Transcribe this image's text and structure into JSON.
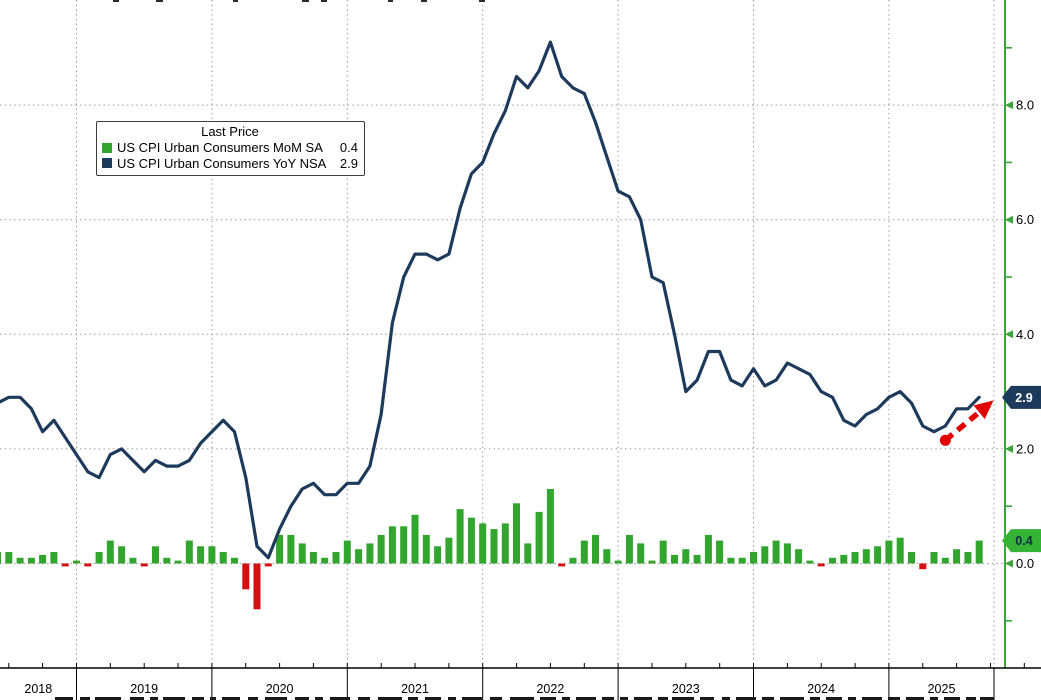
{
  "legend": {
    "title": "Last Price",
    "series": [
      {
        "label": "US CPI Urban Consumers MoM SA",
        "value": "0.4",
        "color": "#31a52e"
      },
      {
        "label": "US CPI Urban Consumers YoY NSA",
        "value": "2.9",
        "color": "#1d3a5c"
      }
    ]
  },
  "colors": {
    "line_navy": "#1d3a5c",
    "bar_green": "#31a52e",
    "bar_red": "#d40f0f",
    "axis_green": "#3aa33a",
    "grid_gray": "#9a9a9a",
    "arrow_red": "#e00000",
    "axis_text": "#000000",
    "x_axis_black": "#000000"
  },
  "chart_data": {
    "type": "combo",
    "x_unit": "month",
    "grid": true,
    "legend_position": "top-left",
    "y_axis": {
      "side": "right",
      "ticks": [
        0,
        2,
        4,
        6,
        8
      ],
      "tick_labels": [
        "0.0",
        "2.0",
        "4.0",
        "6.0",
        "8.0"
      ],
      "minor_ticks": [
        -1,
        1,
        3,
        5,
        7,
        9
      ],
      "displayed_value_range": [
        -1.8,
        9.8
      ]
    },
    "x_axis": {
      "year_labels": [
        "2018",
        "2019",
        "2020",
        "2021",
        "2022",
        "2023",
        "2024",
        "2025"
      ],
      "range": [
        "2018-05",
        "2025-08"
      ]
    },
    "series": [
      {
        "name": "US CPI Urban Consumers MoM SA",
        "type": "bar",
        "start": "2018-05",
        "last_price": 0.4,
        "values": [
          0.2,
          0.2,
          0.1,
          0.1,
          0.15,
          0.2,
          -0.05,
          0.05,
          -0.05,
          0.2,
          0.4,
          0.3,
          0.1,
          -0.05,
          0.3,
          0.1,
          0.05,
          0.4,
          0.3,
          0.3,
          0.2,
          0.1,
          -0.45,
          -0.8,
          -0.05,
          0.5,
          0.5,
          0.35,
          0.2,
          0.1,
          0.2,
          0.4,
          0.25,
          0.35,
          0.5,
          0.65,
          0.65,
          0.85,
          0.5,
          0.3,
          0.45,
          0.95,
          0.8,
          0.7,
          0.6,
          0.7,
          1.05,
          0.35,
          0.9,
          1.3,
          -0.05,
          0.1,
          0.4,
          0.5,
          0.25,
          0.05,
          0.5,
          0.35,
          0.05,
          0.4,
          0.15,
          0.25,
          0.15,
          0.5,
          0.4,
          0.1,
          0.1,
          0.2,
          0.3,
          0.4,
          0.35,
          0.25,
          0.05,
          -0.05,
          0.1,
          0.15,
          0.2,
          0.25,
          0.3,
          0.4,
          0.45,
          0.2,
          -0.1,
          0.2,
          0.1,
          0.25,
          0.2,
          0.4
        ]
      },
      {
        "name": "US CPI Urban Consumers YoY NSA",
        "type": "line",
        "start": "2018-05",
        "last_price": 2.9,
        "values": [
          2.8,
          2.9,
          2.9,
          2.7,
          2.3,
          2.5,
          2.2,
          1.9,
          1.6,
          1.5,
          1.9,
          2.0,
          1.8,
          1.6,
          1.8,
          1.7,
          1.7,
          1.8,
          2.1,
          2.3,
          2.5,
          2.3,
          1.5,
          0.3,
          0.1,
          0.6,
          1.0,
          1.3,
          1.4,
          1.2,
          1.2,
          1.4,
          1.4,
          1.7,
          2.6,
          4.2,
          5.0,
          5.4,
          5.4,
          5.3,
          5.4,
          6.2,
          6.8,
          7.0,
          7.5,
          7.9,
          8.5,
          8.3,
          8.6,
          9.1,
          8.5,
          8.3,
          8.2,
          7.7,
          7.1,
          6.5,
          6.4,
          6.0,
          5.0,
          4.9,
          4.0,
          3.0,
          3.2,
          3.7,
          3.7,
          3.2,
          3.1,
          3.4,
          3.1,
          3.2,
          3.5,
          3.4,
          3.3,
          3.0,
          2.9,
          2.5,
          2.4,
          2.6,
          2.7,
          2.9,
          3.0,
          2.8,
          2.4,
          2.3,
          2.4,
          2.7,
          2.7,
          2.9
        ]
      }
    ],
    "badges": [
      {
        "text": "2.9",
        "value": 2.9,
        "bg": "#1d3a5c",
        "fg": "#ffffff"
      },
      {
        "text": "0.4",
        "value": 0.4,
        "bg": "#35b335",
        "fg": "#0d2b43"
      }
    ],
    "annotation": {
      "shape": "dashed-trend-arrow",
      "color": "#e00000",
      "from_month": "2025-05",
      "from_value": 2.15,
      "to_month": "2025-09",
      "to_value": 2.8
    }
  },
  "artifacts": {
    "top_cutoff_text_fragments": [
      [
        113,
        6
      ],
      [
        156,
        7
      ],
      [
        233,
        5
      ],
      [
        302,
        7
      ],
      [
        321,
        6
      ],
      [
        388,
        5
      ],
      [
        421,
        6
      ],
      [
        479,
        6
      ]
    ],
    "bottom_cutoff_text_fragments": [
      [
        55,
        18
      ],
      [
        80,
        10
      ],
      [
        95,
        26
      ],
      [
        130,
        14
      ],
      [
        150,
        8
      ],
      [
        163,
        22
      ],
      [
        192,
        12
      ],
      [
        210,
        6
      ],
      [
        222,
        18
      ],
      [
        248,
        10
      ],
      [
        265,
        22
      ],
      [
        295,
        14
      ],
      [
        315,
        8
      ],
      [
        330,
        20
      ],
      [
        358,
        12
      ],
      [
        378,
        24
      ],
      [
        408,
        10
      ],
      [
        425,
        16
      ],
      [
        448,
        8
      ],
      [
        462,
        20
      ],
      [
        490,
        12
      ],
      [
        510,
        24
      ],
      [
        540,
        16
      ],
      [
        562,
        8
      ],
      [
        576,
        20
      ],
      [
        602,
        12
      ],
      [
        620,
        8
      ],
      [
        634,
        18
      ],
      [
        658,
        10
      ],
      [
        672,
        22
      ],
      [
        700,
        14
      ],
      [
        722,
        8
      ],
      [
        736,
        20
      ],
      [
        762,
        12
      ],
      [
        780,
        24
      ],
      [
        810,
        10
      ],
      [
        826,
        16
      ],
      [
        848,
        8
      ],
      [
        862,
        20
      ],
      [
        888,
        12
      ],
      [
        906,
        18
      ],
      [
        930,
        8
      ],
      [
        944,
        16
      ],
      [
        966,
        10
      ],
      [
        980,
        14
      ]
    ]
  }
}
